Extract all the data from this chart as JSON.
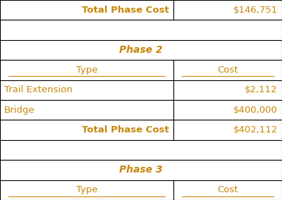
{
  "rows": [
    {
      "type": "total_phase",
      "col1": "Total Phase Cost",
      "col2": "$146,751"
    },
    {
      "type": "spacer"
    },
    {
      "type": "phase_header",
      "col1": "Phase 2"
    },
    {
      "type": "col_header",
      "col1": "Type",
      "col2": "Cost"
    },
    {
      "type": "data",
      "col1": "Trail Extension",
      "col2": "$2,112"
    },
    {
      "type": "data",
      "col1": "Bridge",
      "col2": "$400,000"
    },
    {
      "type": "total_phase",
      "col1": "Total Phase Cost",
      "col2": "$402,112"
    },
    {
      "type": "spacer"
    },
    {
      "type": "phase_header",
      "col1": "Phase 3"
    },
    {
      "type": "col_header",
      "col1": "Type",
      "col2": "Cost"
    }
  ],
  "col_split": 0.615,
  "text_color": "#C8860A",
  "border_color": "#000000",
  "bg_color": "#ffffff",
  "font_size": 9.5,
  "header_font_size": 10
}
